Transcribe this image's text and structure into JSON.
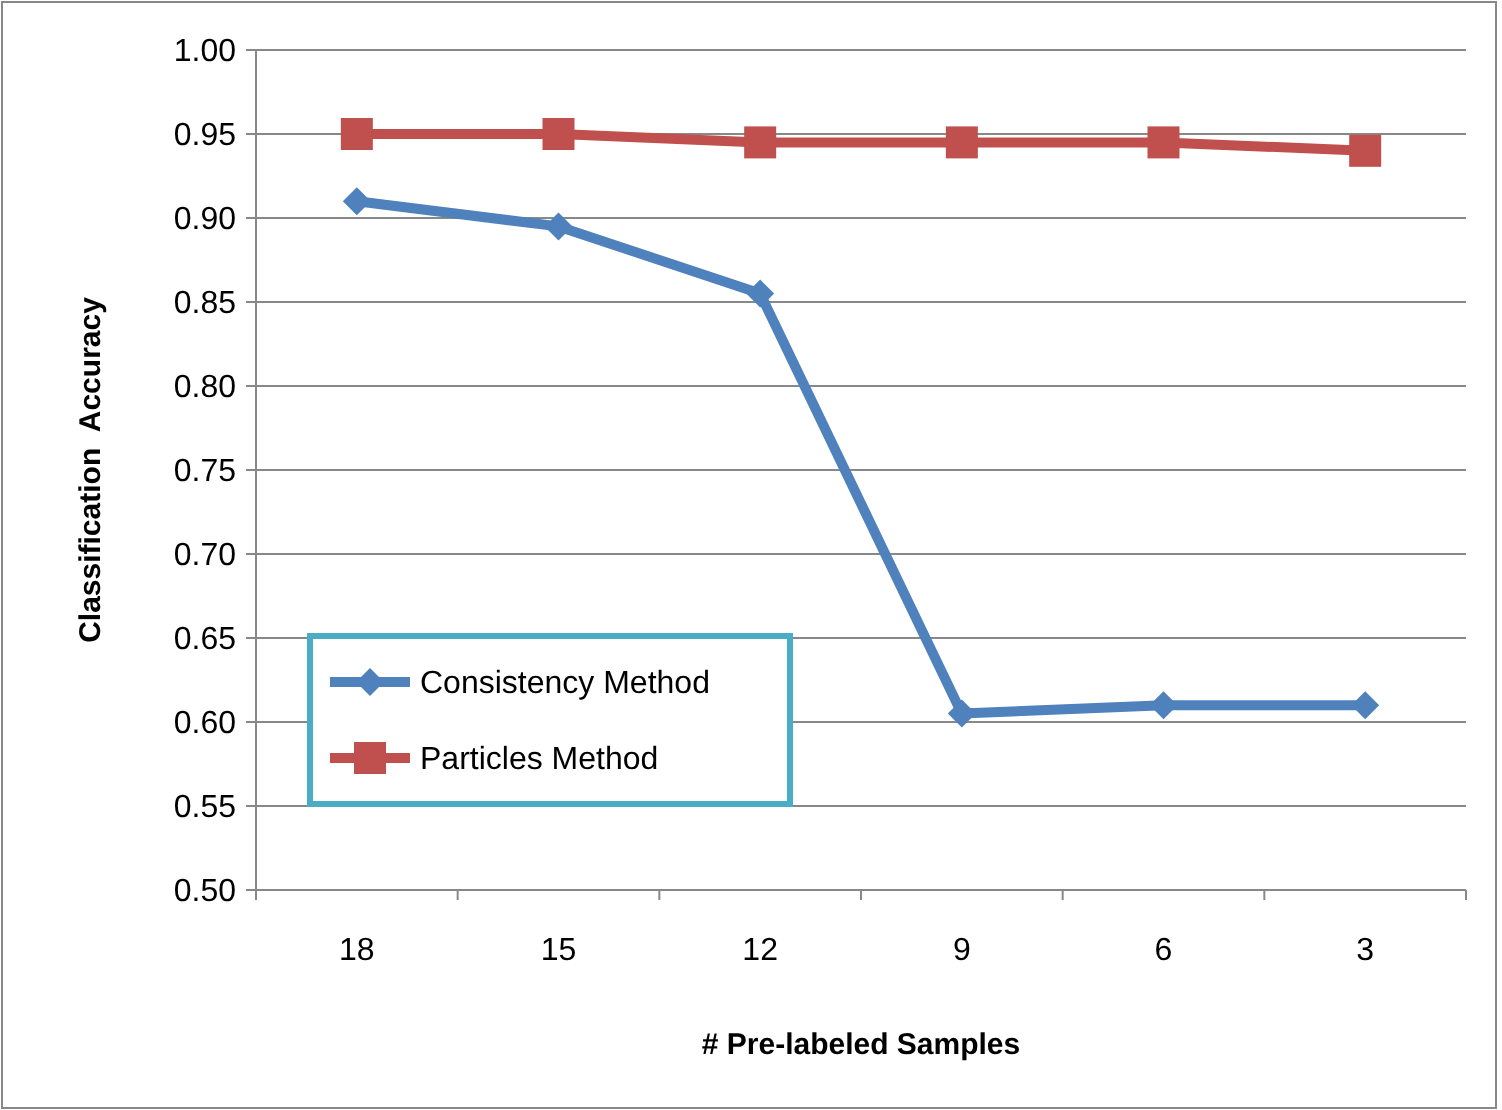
{
  "chart_data": {
    "type": "line",
    "xlabel": "# Pre-labeled Samples",
    "ylabel": "Classification  Accuracy",
    "categories": [
      "18",
      "15",
      "12",
      "9",
      "6",
      "3"
    ],
    "series": [
      {
        "name": "Consistency Method",
        "color": "#4f81bd",
        "marker": "diamond",
        "values": [
          0.91,
          0.895,
          0.855,
          0.605,
          0.61,
          0.61
        ]
      },
      {
        "name": "Particles Method",
        "color": "#c0504d",
        "marker": "square",
        "values": [
          0.95,
          0.95,
          0.945,
          0.945,
          0.945,
          0.94
        ]
      }
    ],
    "ylim": [
      0.5,
      1.0
    ],
    "yticks": [
      {
        "value": 0.5,
        "label": "0.50"
      },
      {
        "value": 0.55,
        "label": "0.55"
      },
      {
        "value": 0.6,
        "label": "0.60"
      },
      {
        "value": 0.65,
        "label": "0.65"
      },
      {
        "value": 0.7,
        "label": "0.70"
      },
      {
        "value": 0.75,
        "label": "0.75"
      },
      {
        "value": 0.8,
        "label": "0.80"
      },
      {
        "value": 0.85,
        "label": "0.85"
      },
      {
        "value": 0.9,
        "label": "0.90"
      },
      {
        "value": 0.95,
        "label": "0.95"
      },
      {
        "value": 1.0,
        "label": "1.00"
      }
    ],
    "grid": "y",
    "legend": "bottom left",
    "line_style": "solid"
  }
}
